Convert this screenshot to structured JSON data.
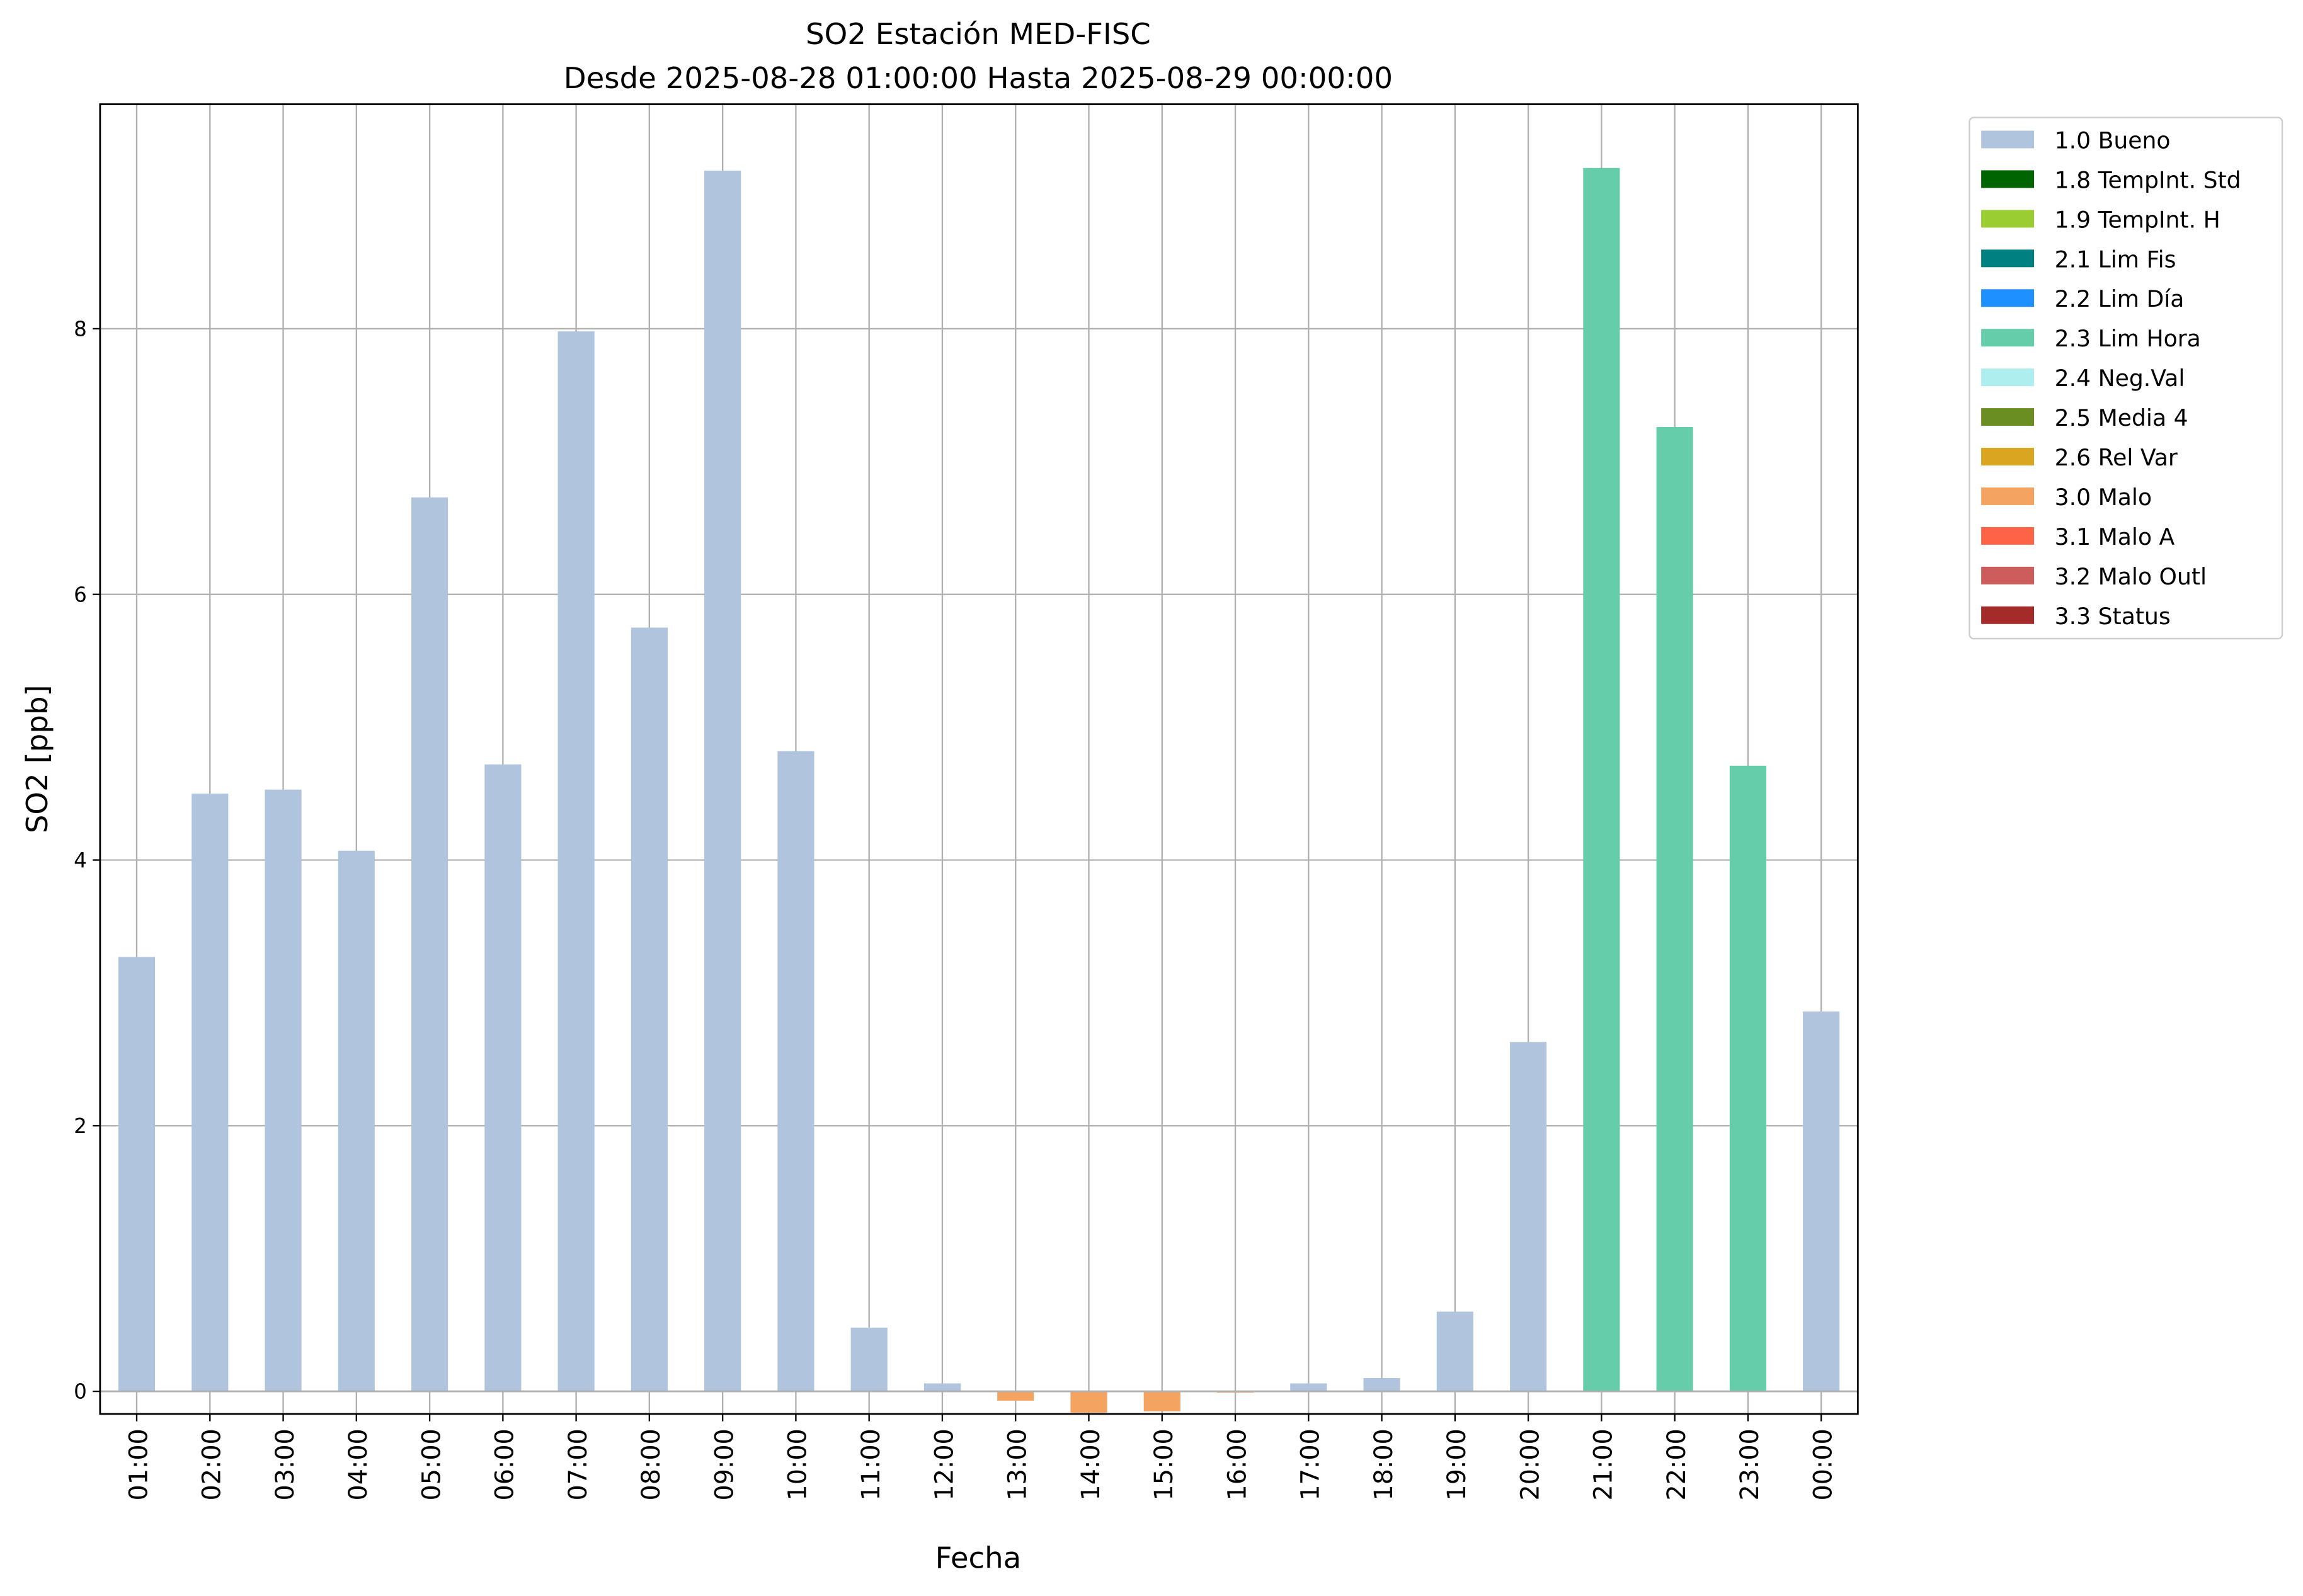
{
  "chart_data": {
    "type": "bar",
    "title": "SO2 Estación MED-FISC",
    "subtitle": "Desde 2025-08-28 01:00:00 Hasta 2025-08-29 00:00:00",
    "xlabel": "Fecha",
    "ylabel": "SO2 [ppb]",
    "ylim": [
      -0.17,
      9.69
    ],
    "yticks": [
      0,
      2,
      4,
      6,
      8
    ],
    "grid": true,
    "legend_placement": "outside-top-right",
    "categories": [
      "01:00",
      "02:00",
      "03:00",
      "04:00",
      "05:00",
      "06:00",
      "07:00",
      "08:00",
      "09:00",
      "10:00",
      "11:00",
      "12:00",
      "13:00",
      "14:00",
      "15:00",
      "16:00",
      "17:00",
      "18:00",
      "19:00",
      "20:00",
      "21:00",
      "22:00",
      "23:00",
      "00:00"
    ],
    "values": [
      3.27,
      4.5,
      4.53,
      4.07,
      6.73,
      4.72,
      7.98,
      5.75,
      9.19,
      4.82,
      0.48,
      0.06,
      -0.07,
      -0.16,
      -0.15,
      -0.01,
      0.06,
      0.1,
      0.6,
      2.63,
      9.21,
      7.26,
      4.71,
      2.86
    ],
    "flags": [
      "1.0 Bueno",
      "1.0 Bueno",
      "1.0 Bueno",
      "1.0 Bueno",
      "1.0 Bueno",
      "1.0 Bueno",
      "1.0 Bueno",
      "1.0 Bueno",
      "1.0 Bueno",
      "1.0 Bueno",
      "1.0 Bueno",
      "1.0 Bueno",
      "3.0 Malo",
      "3.0 Malo",
      "3.0 Malo",
      "3.0 Malo",
      "1.0 Bueno",
      "1.0 Bueno",
      "1.0 Bueno",
      "1.0 Bueno",
      "2.3 Lim Hora",
      "2.3 Lim Hora",
      "2.3 Lim Hora",
      "1.0 Bueno"
    ],
    "legend": [
      {
        "name": "1.0 Bueno",
        "color": "#b0c4de"
      },
      {
        "name": "1.8 TempInt. Std",
        "color": "#006400"
      },
      {
        "name": "1.9 TempInt. H",
        "color": "#9acd32"
      },
      {
        "name": "2.1 Lim Fis",
        "color": "#008080"
      },
      {
        "name": "2.2 Lim Día",
        "color": "#1e90ff"
      },
      {
        "name": "2.3 Lim Hora",
        "color": "#66cdaa"
      },
      {
        "name": "2.4 Neg.Val",
        "color": "#afeeee"
      },
      {
        "name": "2.5 Media 4",
        "color": "#6b8e23"
      },
      {
        "name": "2.6 Rel Var",
        "color": "#daa520"
      },
      {
        "name": "3.0 Malo",
        "color": "#f4a460"
      },
      {
        "name": "3.1 Malo A",
        "color": "#ff6347"
      },
      {
        "name": "3.2 Malo Outl",
        "color": "#cd5c5c"
      },
      {
        "name": "3.3 Status",
        "color": "#a52a2a"
      }
    ]
  }
}
